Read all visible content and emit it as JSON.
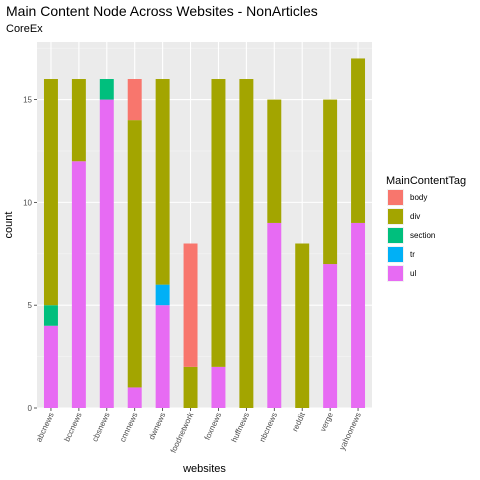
{
  "chart_data": {
    "type": "bar",
    "stacked": true,
    "title": "Main Content Node Across Websites - NonArticles",
    "subtitle": "CoreEx",
    "xlabel": "websites",
    "ylabel": "count",
    "ylim": [
      0,
      17.8
    ],
    "yticks": [
      0,
      5,
      10,
      15
    ],
    "grid": true,
    "legend_title": "MainContentTag",
    "legend_position": "right",
    "categories": [
      "abcnews",
      "bccnews",
      "cbsnews",
      "cnnnews",
      "dwnews",
      "foodnetwork",
      "foxnews",
      "huffnews",
      "nbcnews",
      "reddit",
      "verge",
      "yahoonews"
    ],
    "series": [
      {
        "name": "ul",
        "color": "#E76BF3",
        "values": [
          4,
          12,
          15,
          1,
          5,
          0,
          2,
          0,
          9,
          0,
          7,
          9
        ]
      },
      {
        "name": "tr",
        "color": "#00B0F6",
        "values": [
          0,
          0,
          0,
          0,
          1,
          0,
          0,
          0,
          0,
          0,
          0,
          0
        ]
      },
      {
        "name": "section",
        "color": "#00BF7D",
        "values": [
          1,
          0,
          1,
          0,
          0,
          0,
          0,
          0,
          0,
          0,
          0,
          0
        ]
      },
      {
        "name": "div",
        "color": "#A3A500",
        "values": [
          11,
          4,
          0,
          13,
          10,
          2,
          14,
          16,
          6,
          8,
          8,
          8
        ]
      },
      {
        "name": "body",
        "color": "#F8766D",
        "values": [
          0,
          0,
          0,
          2,
          0,
          6,
          0,
          0,
          0,
          0,
          0,
          0
        ]
      }
    ],
    "legend_order": [
      "body",
      "div",
      "section",
      "tr",
      "ul"
    ]
  }
}
